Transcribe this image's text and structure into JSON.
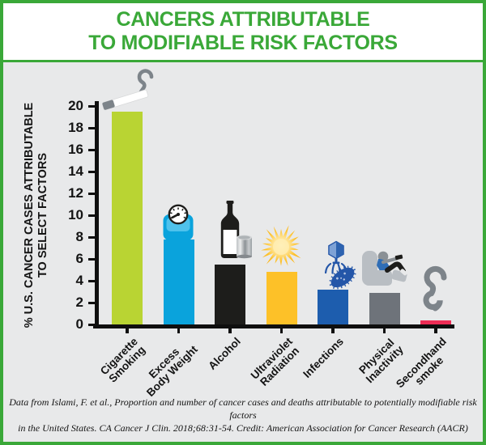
{
  "header": {
    "title_line1": "CANCERS ATTRIBUTABLE",
    "title_line2": "TO MODIFIABLE RISK FACTORS"
  },
  "chart_data": {
    "type": "bar",
    "title": "CANCERS ATTRIBUTABLE TO MODIFIABLE RISK FACTORS",
    "ylabel_line1": "% U.S. CANCER CASES ATTRIBUTABLE",
    "ylabel_line2": "TO SELECT FACTORS",
    "xlabel": "",
    "ylim": [
      0,
      20
    ],
    "yticks": [
      0,
      2,
      4,
      6,
      8,
      10,
      12,
      14,
      16,
      18,
      20
    ],
    "grid": false,
    "legend": false,
    "categories": [
      "Cigarette Smoking",
      "Excess Body Weight",
      "Alcohol",
      "Ultraviolet Radiation",
      "Infections",
      "Physical Inactivity",
      "Secondhand smoke"
    ],
    "category_display": [
      "Cigarette\nSmoking",
      "Excess\nBody Weight",
      "Alcohol",
      "Ultraviolet\nRadiation",
      "Infections",
      "Physical\nInactivity",
      "Secondhand\nsmoke"
    ],
    "values": [
      19.5,
      7.8,
      5.5,
      4.8,
      3.2,
      2.9,
      0.4
    ],
    "bar_colors": [
      "#b9d433",
      "#0aa3dc",
      "#1d1d1b",
      "#fdc128",
      "#1d5dae",
      "#6e737a",
      "#ee2d56"
    ],
    "icons": [
      "cigarette-icon",
      "weight-scale-icon",
      "wine-bottle-and-can-icon",
      "sun-icon",
      "virus-and-bacteria-icon",
      "person-in-recliner-icon",
      "smoke-icon"
    ]
  },
  "footer": {
    "line1": "Data from Islami, F. et al., Proportion and number of cancer cases and deaths attributable to potentially modifiable risk factors",
    "line2": "in the United States. CA Cancer J Clin. 2018;68:31-54. Credit: American Association for Cancer Research (AACR)"
  },
  "colors": {
    "accent_green": "#3aa838",
    "chart_background": "#e8e9ea",
    "axis_black": "#0f0f0f",
    "icon_gray": "#7d848a"
  }
}
